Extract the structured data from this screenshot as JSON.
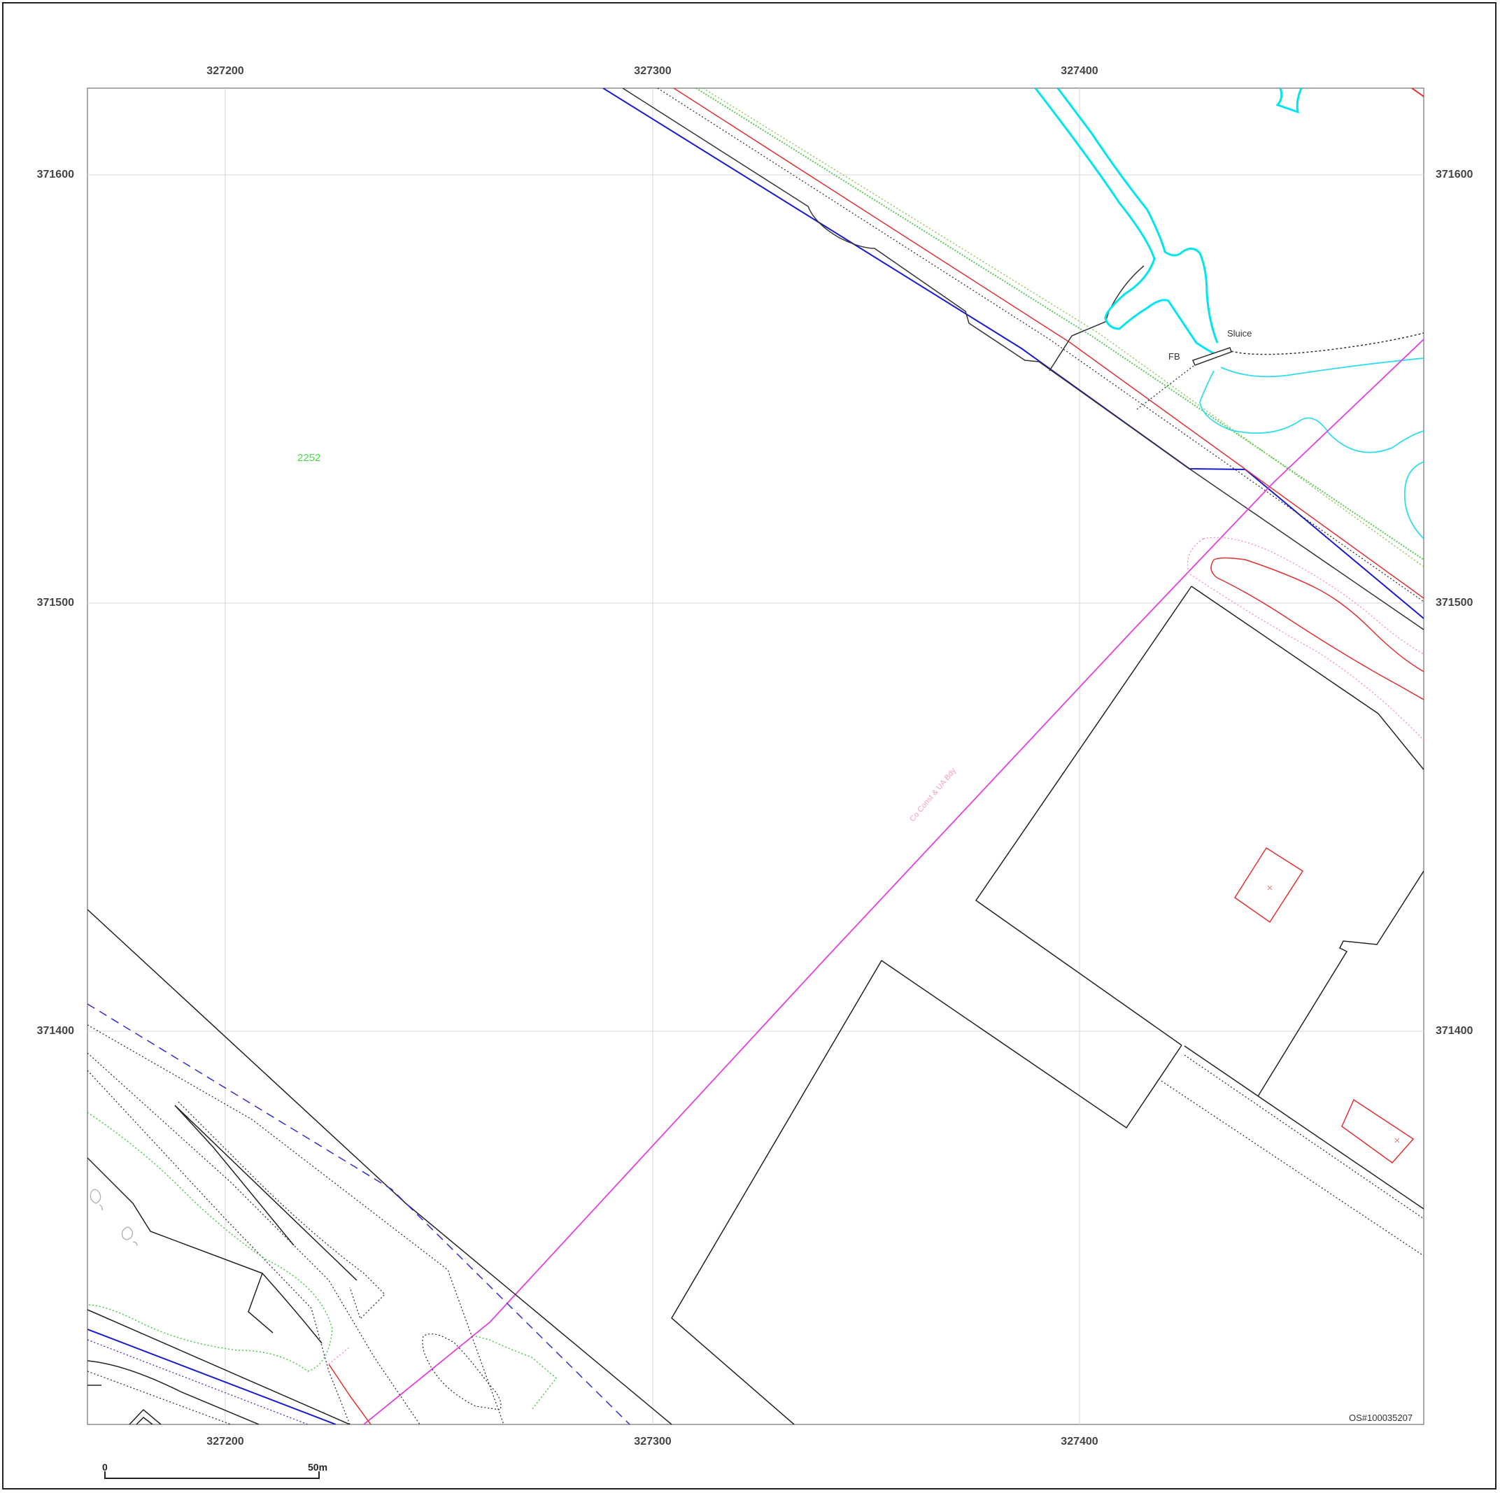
{
  "grid": {
    "easting_labels": [
      "327200",
      "327300",
      "327400"
    ],
    "northing_labels": [
      "371600",
      "371500",
      "371400"
    ]
  },
  "labels": {
    "parcel_number": "2252",
    "sluice": "Sluice",
    "footbridge": "FB",
    "faint_road_label": "Co Const & UA Bdy"
  },
  "copyright": "OS#100035207",
  "scale_bar": {
    "start_label": "0",
    "end_label": "50m"
  },
  "colors": {
    "frame": "#222222",
    "grid": "#d0d0d0",
    "building": "#222222",
    "road_edge": "#1a1ad0",
    "watercourse": "#00e0f0",
    "boundary": "#e040e0",
    "red_feature": "#e03030",
    "green_dotted": "#44cc44",
    "parcel_label": "#44dd44"
  }
}
